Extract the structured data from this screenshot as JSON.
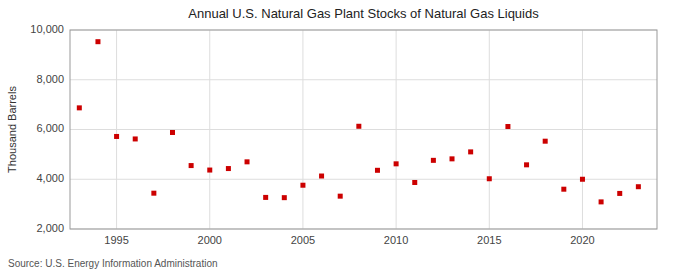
{
  "chart_data": {
    "type": "scatter",
    "title": "Annual U.S. Natural Gas Plant Stocks of Natural Gas Liquids",
    "y_label": "Thousand Barrels",
    "source": "Source: U.S. Energy Information Administration",
    "x": [
      1993,
      1994,
      1995,
      1996,
      1997,
      1998,
      1999,
      2000,
      2001,
      2002,
      2003,
      2004,
      2005,
      2006,
      2007,
      2008,
      2009,
      2010,
      2011,
      2012,
      2013,
      2014,
      2015,
      2016,
      2017,
      2018,
      2019,
      2020,
      2021,
      2022,
      2023
    ],
    "values": [
      6870,
      9530,
      5720,
      5620,
      3440,
      5880,
      4550,
      4370,
      4430,
      4700,
      3270,
      3260,
      3760,
      4130,
      3320,
      6130,
      4360,
      4620,
      3870,
      4760,
      4820,
      5100,
      4020,
      6120,
      4580,
      5530,
      3600,
      4000,
      3090,
      3430,
      3700
    ],
    "color": "#cc0000",
    "marker": "square",
    "xlim": [
      1992.5,
      2024
    ],
    "xticks": [
      1995,
      2000,
      2005,
      2010,
      2015,
      2020
    ],
    "ylim": [
      2000,
      10000
    ],
    "yticks": [
      {
        "value": 2000,
        "label": "2,000"
      },
      {
        "value": 4000,
        "label": "4,000"
      },
      {
        "value": 6000,
        "label": "6,000"
      },
      {
        "value": 8000,
        "label": "8,000"
      },
      {
        "value": 10000,
        "label": "10,000"
      }
    ],
    "grid": true
  }
}
